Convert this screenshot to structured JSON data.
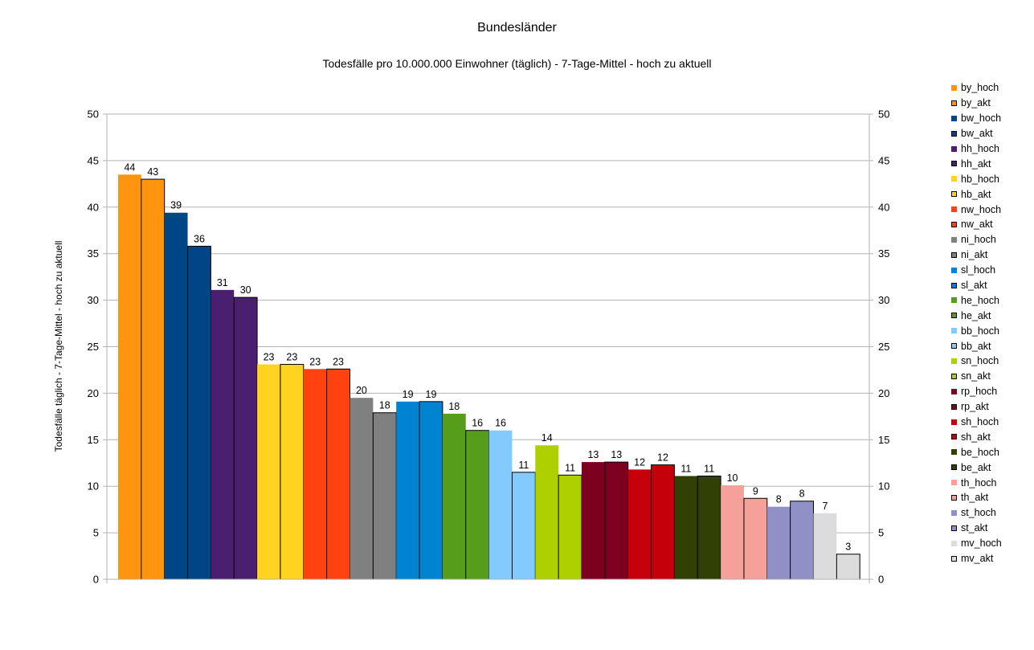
{
  "chart_data": {
    "type": "bar",
    "title": "Bundesländer",
    "subtitle": "Todesfälle pro 10.000.000 Einwohner (täglich) - 7-Tage-Mittel - hoch zu aktuell",
    "ylabel": "Todesfälle täglich - 7-Tage-Mittel - hoch zu aktuell",
    "ylim": [
      0,
      50
    ],
    "yticks": [
      0,
      5,
      10,
      15,
      20,
      25,
      30,
      35,
      40,
      45,
      50
    ],
    "secondary_axis": true,
    "grid": true,
    "legend_position": "right",
    "series": [
      {
        "name": "by_hoch",
        "value": 43.5,
        "label": "44",
        "color": "#ff950e",
        "outlined": false
      },
      {
        "name": "by_akt",
        "value": 43.0,
        "label": "43",
        "color": "#ff950e",
        "outlined": true
      },
      {
        "name": "bw_hoch",
        "value": 39.4,
        "label": "39",
        "color": "#004586",
        "outlined": false
      },
      {
        "name": "bw_akt",
        "value": 35.8,
        "label": "36",
        "color": "#004586",
        "outlined": true
      },
      {
        "name": "hh_hoch",
        "value": 31.1,
        "label": "31",
        "color": "#4b1f6f",
        "outlined": false
      },
      {
        "name": "hh_akt",
        "value": 30.3,
        "label": "30",
        "color": "#4b1f6f",
        "outlined": true
      },
      {
        "name": "hb_hoch",
        "value": 23.1,
        "label": "23",
        "color": "#ffd320",
        "outlined": false
      },
      {
        "name": "hb_akt",
        "value": 23.1,
        "label": "23",
        "color": "#ffd320",
        "outlined": true
      },
      {
        "name": "nw_hoch",
        "value": 22.6,
        "label": "23",
        "color": "#ff420e",
        "outlined": false
      },
      {
        "name": "nw_akt",
        "value": 22.6,
        "label": "23",
        "color": "#ff420e",
        "outlined": true
      },
      {
        "name": "ni_hoch",
        "value": 19.5,
        "label": "20",
        "color": "#808080",
        "outlined": false
      },
      {
        "name": "ni_akt",
        "value": 17.9,
        "label": "18",
        "color": "#808080",
        "outlined": true
      },
      {
        "name": "sl_hoch",
        "value": 19.1,
        "label": "19",
        "color": "#0084d1",
        "outlined": false
      },
      {
        "name": "sl_akt",
        "value": 19.1,
        "label": "19",
        "color": "#0084d1",
        "outlined": true
      },
      {
        "name": "he_hoch",
        "value": 17.8,
        "label": "18",
        "color": "#579d1c",
        "outlined": false
      },
      {
        "name": "he_akt",
        "value": 16.0,
        "label": "16",
        "color": "#579d1c",
        "outlined": true
      },
      {
        "name": "bb_hoch",
        "value": 16.0,
        "label": "16",
        "color": "#83caff",
        "outlined": false
      },
      {
        "name": "bb_akt",
        "value": 11.5,
        "label": "11",
        "color": "#83caff",
        "outlined": true
      },
      {
        "name": "sn_hoch",
        "value": 14.4,
        "label": "14",
        "color": "#aecf00",
        "outlined": false
      },
      {
        "name": "sn_akt",
        "value": 11.2,
        "label": "11",
        "color": "#aecf00",
        "outlined": true
      },
      {
        "name": "rp_hoch",
        "value": 12.6,
        "label": "13",
        "color": "#7e0021",
        "outlined": false
      },
      {
        "name": "rp_akt",
        "value": 12.6,
        "label": "13",
        "color": "#7e0021",
        "outlined": true
      },
      {
        "name": "sh_hoch",
        "value": 11.8,
        "label": "12",
        "color": "#c5000b",
        "outlined": false
      },
      {
        "name": "sh_akt",
        "value": 12.3,
        "label": "12",
        "color": "#c5000b",
        "outlined": true
      },
      {
        "name": "be_hoch",
        "value": 11.1,
        "label": "11",
        "color": "#314004",
        "outlined": false
      },
      {
        "name": "be_akt",
        "value": 11.1,
        "label": "11",
        "color": "#314004",
        "outlined": true
      },
      {
        "name": "th_hoch",
        "value": 10.1,
        "label": "10",
        "color": "#f5a098",
        "outlined": false
      },
      {
        "name": "th_akt",
        "value": 8.7,
        "label": "9",
        "color": "#f5a098",
        "outlined": true
      },
      {
        "name": "st_hoch",
        "value": 7.8,
        "label": "8",
        "color": "#8e90c6",
        "outlined": false
      },
      {
        "name": "st_akt",
        "value": 8.4,
        "label": "8",
        "color": "#8e90c6",
        "outlined": true
      },
      {
        "name": "mv_hoch",
        "value": 7.1,
        "label": "7",
        "color": "#dcdcdc",
        "outlined": false
      },
      {
        "name": "mv_akt",
        "value": 2.7,
        "label": "3",
        "color": "#dcdcdc",
        "outlined": true
      }
    ]
  }
}
